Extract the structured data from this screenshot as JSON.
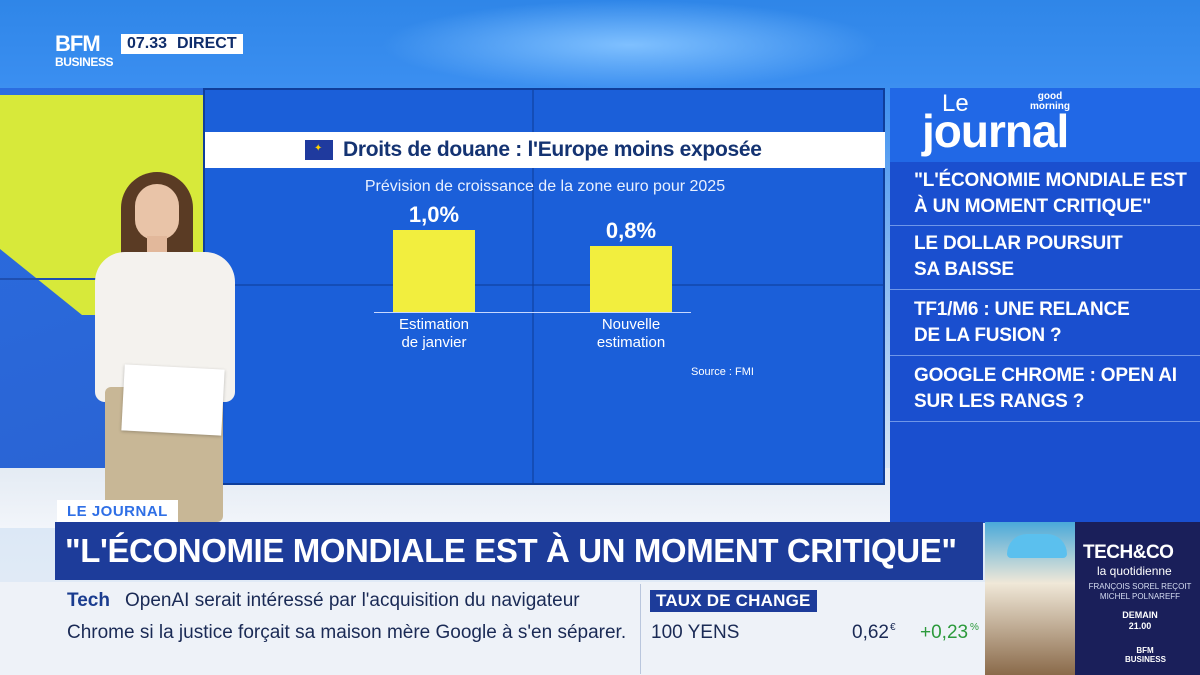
{
  "channel": {
    "logo_top": "BFM",
    "logo_bottom": "BUSINESS",
    "time": "07.33",
    "live_label": "DIRECT"
  },
  "chart_data": {
    "type": "bar",
    "title": "Droits de douane : l'Europe moins exposée",
    "subtitle": "Prévision de croissance de la zone euro pour 2025",
    "categories": [
      "Estimation de janvier",
      "Nouvelle estimation"
    ],
    "category_lines": [
      [
        "Estimation",
        "de janvier"
      ],
      [
        "Nouvelle",
        "estimation"
      ]
    ],
    "values": [
      1.0,
      0.8
    ],
    "value_labels": [
      "1,0%",
      "0,8%"
    ],
    "unit": "%",
    "ylim": [
      0,
      1.0
    ],
    "source": "Source : FMI",
    "colors": {
      "bar": "#f2ee3e",
      "background": "#1b5fd9"
    }
  },
  "sidebar": {
    "le": "Le",
    "journal": "journal",
    "show_tag_line1": "good",
    "show_tag_line2": "morning",
    "items": [
      {
        "line1": "\"L'économie mondiale est",
        "line2": "à un moment critique\""
      },
      {
        "line1": "Le dollar poursuit",
        "line2": "sa baisse"
      },
      {
        "line1": "TF1/M6 : une relance",
        "line2": "de la fusion ?"
      },
      {
        "line1": "Google Chrome : Open AI",
        "line2": "sur les rangs ?"
      }
    ]
  },
  "lower_third": {
    "tag": "LE JOURNAL",
    "headline": "\"L'ÉCONOMIE MONDIALE EST À UN MOMENT CRITIQUE\""
  },
  "ticker": {
    "label": "Tech",
    "line1": "OpenAI serait intéressé par l'acquisition du navigateur",
    "line2": "Chrome si la justice forçait sa maison mère Google à s'en séparer."
  },
  "fx": {
    "title": "TAUX DE CHANGE",
    "name": "100 YENS",
    "value": "0,62",
    "currency": "€",
    "change": "+0,23",
    "change_unit": "%"
  },
  "promo": {
    "title": "TECH&CO",
    "subtitle": "la quotidienne",
    "guests_line1": "FRANÇOIS SOREL REÇOIT",
    "guests_line2": "MICHEL POLNAREFF",
    "day": "DEMAIN",
    "time": "21.00",
    "logo_top": "BFM",
    "logo_bottom": "BUSINESS"
  }
}
